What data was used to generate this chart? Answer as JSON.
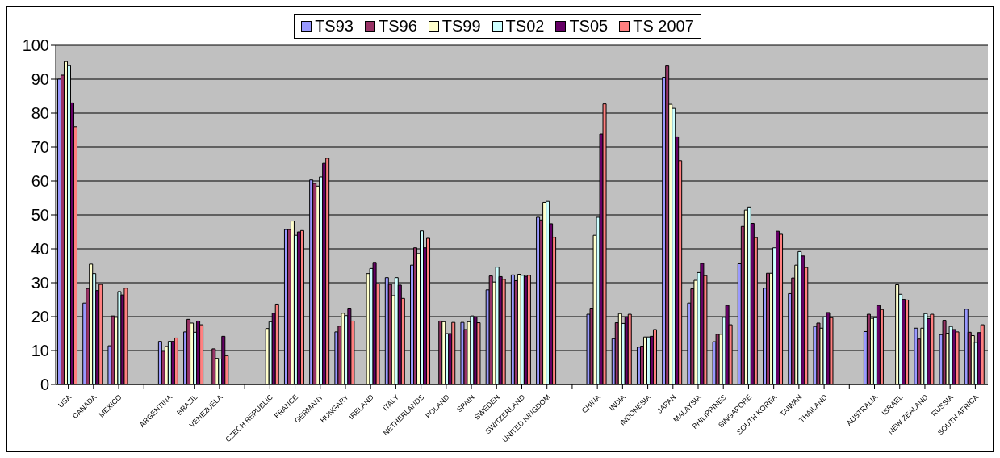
{
  "chart_data": {
    "type": "bar",
    "categories": [
      "USA",
      "CANADA",
      "MEXICO",
      null,
      "ARGENTINA",
      "BRAZIL",
      "VENEZUELA",
      null,
      "CZECH REPUBLIC",
      "FRANCE",
      "GERMANY",
      "HUNGARY",
      "IRELAND",
      "ITALY",
      "NETHERLANDS",
      "POLAND",
      "SPAIN",
      "SWEDEN",
      "SWITZERLAND",
      "UNITED KINGDOM",
      null,
      "CHINA",
      "INDIA",
      "INDONESIA",
      "JAPAN",
      "MALAYSIA",
      "PHILIPPINES",
      "SINGAPORE",
      "SOUTH KOREA",
      "TAIWAN",
      "THAILAND",
      null,
      "AUSTRALIA",
      "ISRAEL",
      "NEW ZEALAND",
      "RUSSIA",
      "SOUTH AFRICA"
    ],
    "series": [
      {
        "name": "TS93",
        "color": "#9999ff",
        "values": [
          90,
          24,
          11.4,
          null,
          12.7,
          15.5,
          null,
          null,
          null,
          45.7,
          60.3,
          15.5,
          null,
          31.5,
          35.2,
          null,
          18.3,
          27.9,
          32.3,
          49.3,
          null,
          20.7,
          13.5,
          11,
          90.6,
          24,
          12.6,
          35.6,
          28.4,
          26.8,
          17.1,
          null,
          15.6,
          null,
          16.6,
          14.7,
          22.2
        ]
      },
      {
        "name": "TS96",
        "color": "#993366",
        "values": [
          91.2,
          28.3,
          20.2,
          null,
          9.8,
          19.2,
          10.5,
          null,
          null,
          45.7,
          59.3,
          17.2,
          null,
          29.5,
          40.3,
          18.7,
          16.2,
          32,
          30.6,
          48.5,
          null,
          22.5,
          18.2,
          11.3,
          93.9,
          28.2,
          14.8,
          46.6,
          32.8,
          31.4,
          18.1,
          null,
          20.7,
          null,
          13.4,
          18.9,
          15.4
        ]
      },
      {
        "name": "TS99",
        "color": "#ffffcc",
        "values": [
          95.2,
          35.5,
          19.8,
          null,
          11.2,
          18.1,
          7.7,
          null,
          16.5,
          48.2,
          58.5,
          21,
          32.7,
          26.2,
          38.6,
          18.5,
          18.5,
          30.2,
          32.5,
          53.7,
          null,
          44,
          20.9,
          14,
          82.6,
          30.7,
          14.8,
          51.4,
          32.8,
          35.2,
          16.6,
          null,
          19.5,
          29.4,
          16.6,
          15.1,
          14.4
        ]
      },
      {
        "name": "TS02",
        "color": "#ccffff",
        "values": [
          94,
          32.7,
          27.4,
          null,
          12.7,
          15.4,
          7.5,
          null,
          18.5,
          44,
          61.2,
          20.3,
          34.2,
          31.5,
          45.3,
          15,
          20.2,
          34.6,
          32.2,
          54,
          null,
          49.3,
          18,
          14,
          81.4,
          33,
          19.8,
          52.3,
          40.3,
          39.2,
          19.9,
          null,
          19.7,
          26.6,
          20.9,
          17.1,
          12.4
        ]
      },
      {
        "name": "TS05",
        "color": "#660066",
        "values": [
          83,
          27.7,
          26.4,
          null,
          12.7,
          18.7,
          14.2,
          null,
          21,
          45,
          65.2,
          22.5,
          36,
          29.3,
          40.3,
          15,
          19.9,
          31.8,
          31.9,
          47.4,
          null,
          73.8,
          19.9,
          14.2,
          73,
          35.7,
          23.3,
          47.5,
          45.2,
          37.9,
          21.2,
          null,
          23.3,
          25.1,
          19.4,
          16.2,
          15.3
        ]
      },
      {
        "name": "TS 2007",
        "color": "#ff8080",
        "values": [
          76,
          29.5,
          28.4,
          null,
          13.7,
          17.6,
          8.5,
          null,
          23.7,
          45.4,
          66.7,
          18.7,
          29.7,
          25.4,
          43.1,
          18.3,
          18.2,
          31,
          32.2,
          43.4,
          null,
          82.7,
          20.7,
          16.2,
          66,
          32.1,
          17.6,
          43.3,
          44.3,
          34.5,
          19.7,
          null,
          22.1,
          24.9,
          20.7,
          15.5,
          17.6
        ]
      }
    ],
    "ylim": [
      0,
      100
    ],
    "yticks": [
      0,
      10,
      20,
      30,
      40,
      50,
      60,
      70,
      80,
      90,
      100
    ],
    "grid": "y",
    "legend": "top"
  }
}
